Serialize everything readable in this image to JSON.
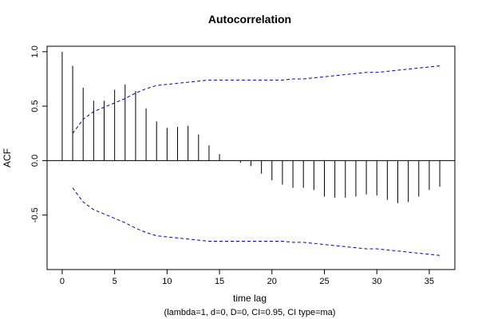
{
  "chart_data": {
    "type": "bar",
    "title": "Autocorrelation",
    "xlabel": "time lag",
    "subtitle": "(lambda=1, d=0, D=0, CI=0.95, CI type=ma)",
    "ylabel": "ACF",
    "xlim": [
      -1.44,
      37.44
    ],
    "ylim": [
      -1.0,
      1.05
    ],
    "xticks": [
      0,
      5,
      10,
      15,
      20,
      25,
      30,
      35
    ],
    "yticks": [
      -0.5,
      0.0,
      0.5,
      1.0
    ],
    "ytick_labels": [
      "-0.5",
      "0.0",
      "0.5",
      "1.0"
    ],
    "grid": false,
    "colors": {
      "acf_bars": "#000000",
      "ci_band": "#0000cc",
      "zero_line": "#000000"
    },
    "lags": [
      0,
      1,
      2,
      3,
      4,
      5,
      6,
      7,
      8,
      9,
      10,
      11,
      12,
      13,
      14,
      15,
      16,
      17,
      18,
      19,
      20,
      21,
      22,
      23,
      24,
      25,
      26,
      27,
      28,
      29,
      30,
      31,
      32,
      33,
      34,
      35,
      36
    ],
    "acf": [
      1.0,
      0.87,
      0.67,
      0.55,
      0.55,
      0.65,
      0.7,
      0.64,
      0.48,
      0.36,
      0.3,
      0.31,
      0.32,
      0.24,
      0.14,
      0.06,
      0.0,
      -0.02,
      -0.05,
      -0.12,
      -0.18,
      -0.22,
      -0.25,
      -0.25,
      -0.27,
      -0.33,
      -0.34,
      -0.34,
      -0.33,
      -0.31,
      -0.32,
      -0.36,
      -0.39,
      -0.38,
      -0.33,
      -0.27,
      -0.24
    ],
    "ci_upper": [
      null,
      0.25,
      0.38,
      0.45,
      0.49,
      0.53,
      0.57,
      0.62,
      0.66,
      0.69,
      0.7,
      0.71,
      0.72,
      0.73,
      0.74,
      0.74,
      0.74,
      0.74,
      0.74,
      0.74,
      0.74,
      0.74,
      0.75,
      0.75,
      0.76,
      0.77,
      0.78,
      0.79,
      0.8,
      0.81,
      0.81,
      0.82,
      0.83,
      0.84,
      0.85,
      0.86,
      0.87
    ],
    "ci_lower": [
      null,
      -0.25,
      -0.38,
      -0.45,
      -0.49,
      -0.53,
      -0.57,
      -0.62,
      -0.66,
      -0.69,
      -0.7,
      -0.71,
      -0.72,
      -0.73,
      -0.74,
      -0.74,
      -0.74,
      -0.74,
      -0.74,
      -0.74,
      -0.74,
      -0.74,
      -0.75,
      -0.75,
      -0.76,
      -0.77,
      -0.78,
      -0.79,
      -0.8,
      -0.81,
      -0.81,
      -0.82,
      -0.83,
      -0.84,
      -0.85,
      -0.86,
      -0.87
    ]
  }
}
